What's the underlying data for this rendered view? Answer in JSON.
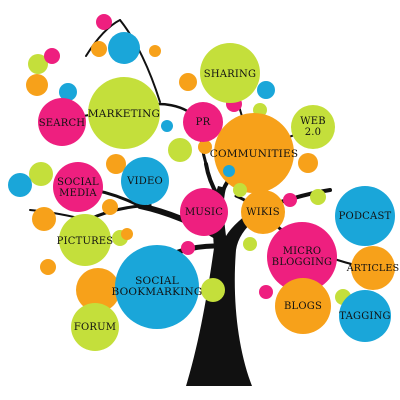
{
  "palette": {
    "pink": "#ee1f7f",
    "orange": "#f7a11a",
    "blue": "#1aa6d9",
    "green": "#c4df3b",
    "trunk": "#111111"
  },
  "labels": {
    "marketing": "MARKETING",
    "search": "SEARCH",
    "sharing": "SHARING",
    "pr": "PR",
    "web20": "WEB 2.0",
    "communities": "COMMUNITIES",
    "social_media_1": "SOCIAL",
    "social_media_2": "MEDIA",
    "video": "VIDEO",
    "music": "MUSIC",
    "wikis": "WIKIS",
    "podcast": "PODCAST",
    "pictures": "PICTURES",
    "micro_blogging_1": "MICRO",
    "micro_blogging_2": "BLOGGING",
    "articles": "ARTICLES",
    "social_bookmarking_1": "SOCIAL",
    "social_bookmarking_2": "BOOKMARKING",
    "blogs": "BLOGS",
    "tagging": "TAGGING",
    "forum": "FORUM"
  }
}
